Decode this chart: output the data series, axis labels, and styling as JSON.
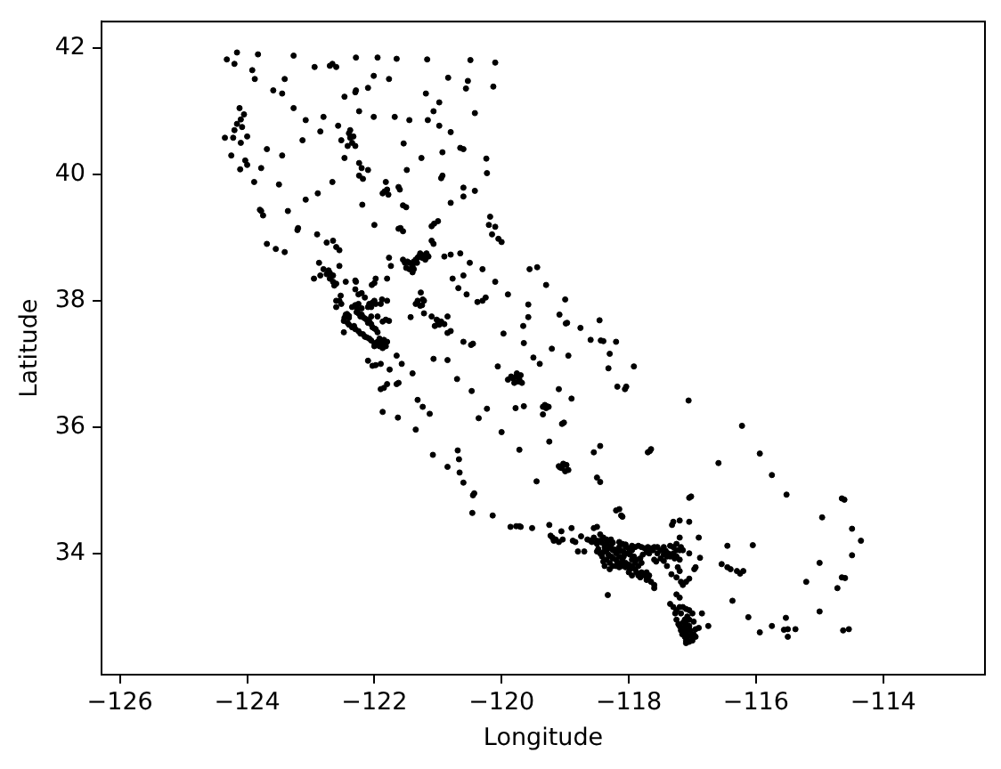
{
  "chart_data": {
    "type": "scatter",
    "xlabel": "Longitude",
    "ylabel": "Latitude",
    "color": "#000000",
    "marker": "circle",
    "xlim": [
      -126.29,
      -112.4
    ],
    "ylim": [
      32.08,
      42.42
    ],
    "xticks": [
      {
        "value": -126,
        "label": "−126"
      },
      {
        "value": -124,
        "label": "−124"
      },
      {
        "value": -122,
        "label": "−122"
      },
      {
        "value": -120,
        "label": "−120"
      },
      {
        "value": -118,
        "label": "−118"
      },
      {
        "value": -116,
        "label": "−116"
      },
      {
        "value": -114,
        "label": "−114"
      }
    ],
    "yticks": [
      34,
      36,
      38,
      40,
      42
    ],
    "x": [
      -124.32,
      -124.2,
      -124.16,
      -123.83,
      -123.27,
      -122.66,
      -122.6,
      -122.7,
      -122.29,
      -121.95,
      -121.65,
      -121.17,
      -120.49,
      -120.1,
      -123.92,
      -123.88,
      -123.59,
      -123.45,
      -123.41,
      -122.94,
      -123.27,
      -123.08,
      -122.8,
      -122.57,
      -122.47,
      -122.29,
      -122.1,
      -122.01,
      -121.77,
      -122.01,
      -121.68,
      -121.45,
      -121.16,
      -121.07,
      -120.98,
      -122.24,
      -122.52,
      -122.47,
      -122.85,
      -123.13,
      -123.45,
      -123.69,
      -123.5,
      -123.08,
      -122.89,
      -122.66,
      -122.24,
      -122.1,
      -121.82,
      -121.49,
      -121.54,
      -121.26,
      -120.93,
      -120.93,
      -120.6,
      -120.42,
      -120.23,
      -120.13,
      -120.56,
      -120.84,
      -120.42,
      -120.8,
      -120.98,
      -121.19,
      -120.53,
      -124.16,
      -124.1,
      -124.08,
      -124.2,
      -124.05,
      -124.12,
      -124.22,
      -124.35,
      -124.0,
      -124.1,
      -124.25,
      -124.0,
      -124.11,
      -124.03,
      -123.89,
      -123.78,
      -122.38,
      -122.4,
      -122.35,
      -122.3,
      -122.42,
      -122.38,
      -122.33,
      -120.65,
      -120.6,
      -120.24,
      -122.3,
      -122.24,
      -122.2,
      -122.18,
      -121.84,
      -121.8,
      -121.87,
      -121.78,
      -121.6,
      -121.62,
      -121.55,
      -121.5,
      -122.19,
      -122.0,
      -121.62,
      -121.59,
      -121.55,
      -121.06,
      -121.0,
      -121.1,
      -121.07,
      -121.1,
      -120.95,
      -120.8,
      -120.6,
      -120.18,
      -120.2,
      -120.1,
      -120.0,
      -120.05,
      -120.15,
      -121.45,
      -121.4,
      -121.35,
      -121.3,
      -121.28,
      -121.25,
      -121.45,
      -121.4,
      -121.55,
      -121.2,
      -121.15,
      -121.74,
      -121.77,
      -121.8,
      -120.8,
      -120.9,
      -120.65,
      -120.77,
      -120.6,
      -120.55,
      -120.68,
      -120.38,
      -120.3,
      -120.25,
      -121.27,
      -121.32,
      -121.25,
      -121.35,
      -121.22,
      -121.43,
      -121.22,
      -121.1,
      -121.0,
      -120.95,
      -121.05,
      -120.9,
      -120.85,
      -120.85,
      -120.8,
      -120.48,
      -120.45,
      -120.6,
      -120.85,
      -119.97,
      -120.06,
      -119.65,
      -119.5,
      -119.7,
      -119.85,
      -119.8,
      -119.72,
      -119.68,
      -119.9,
      -119.65,
      -119.29,
      -119.35,
      -119.32,
      -119.35,
      -119.02,
      -119.05,
      -119.25,
      -120.36,
      -119.78,
      -119.05,
      -118.98,
      -119.1,
      -118.95,
      -119.0,
      -119.45,
      -118.45,
      -118.5,
      -118.45,
      -118.55,
      -122.7,
      -122.72,
      -122.65,
      -122.8,
      -122.87,
      -122.63,
      -122.6,
      -122.45,
      -122.29,
      -122.3,
      -122.55,
      -122.25,
      -122.2,
      -122.04,
      -121.98,
      -122.0,
      -122.55,
      -122.52,
      -122.6,
      -122.53,
      -122.03,
      -122.05,
      -121.98,
      -121.8,
      -121.88,
      -122.27,
      -122.25,
      -122.2,
      -122.3,
      -122.15,
      -122.08,
      -122.1,
      -121.98,
      -122.0,
      -121.77,
      -121.87,
      -121.95,
      -122.4,
      -122.43,
      -122.42,
      -122.35,
      -122.3,
      -122.22,
      -122.15,
      -122.48,
      -122.48,
      -121.9,
      -121.85,
      -121.95,
      -122.0,
      -121.8,
      -121.87,
      -122.05,
      -121.65,
      -121.57,
      -122.03,
      -121.98,
      -121.9,
      -122.1,
      -121.76,
      -121.65,
      -121.62,
      -121.9,
      -121.85,
      -121.8,
      -121.4,
      -122.85,
      -122.95,
      -123.8,
      -123.78,
      -123.75,
      -123.69,
      -123.55,
      -123.41,
      -123.36,
      -123.2,
      -123.21,
      -122.9,
      -122.65,
      -122.75,
      -122.6,
      -122.55,
      -121.87,
      -121.63,
      -121.32,
      -121.24,
      -121.13,
      -121.35,
      -121.08,
      -120.69,
      -120.67,
      -120.85,
      -120.66,
      -120.6,
      -120.43,
      -120.45,
      -120.46,
      -120.14,
      -119.7,
      -119.77,
      -119.86,
      -119.52,
      -119.23,
      -119.18,
      -119.1,
      -119.04,
      -118.75,
      -118.84,
      -119.06,
      -119.25,
      -118.9,
      -121.07,
      -120.7,
      -120.47,
      -120.23,
      -120.0,
      -119.72,
      -118.25,
      -118.3,
      -118.35,
      -118.4,
      -118.45,
      -118.5,
      -118.2,
      -118.15,
      -118.1,
      -118.05,
      -118.0,
      -117.95,
      -117.9,
      -117.85,
      -117.75,
      -117.65,
      -117.6,
      -117.55,
      -117.45,
      -117.35,
      -117.3,
      -117.25,
      -117.2,
      -117.4,
      -117.35,
      -117.25,
      -117.2,
      -116.97,
      -116.95,
      -117.23,
      -117.33,
      -117.15,
      -117.1,
      -117.57,
      -117.6,
      -118.35,
      -118.3,
      -118.25,
      -118.2,
      -118.15,
      -118.1,
      -118.05,
      -118.1,
      -118.2,
      -118.15,
      -118.3,
      -118.38,
      -118.4,
      -117.95,
      -117.9,
      -117.85,
      -117.8,
      -117.75,
      -117.7,
      -117.65,
      -117.6,
      -117.85,
      -118.0,
      -117.95,
      -117.9,
      -117.8,
      -118.45,
      -118.5,
      -118.55,
      -118.4,
      -118.6,
      -118.3,
      -118.25,
      -118.5,
      -118.45,
      -118.55,
      -118.5,
      -118.7,
      -118.8,
      -118.15,
      -118.12,
      -118.1,
      -118.2,
      -117.3,
      -117.32,
      -117.2,
      -117.05,
      -117.02,
      -117.05,
      -116.9,
      -117.2,
      -116.45,
      -116.05,
      -116.54,
      -116.45,
      -116.4,
      -116.3,
      -116.2,
      -116.25,
      -116.88,
      -116.37,
      -115.53,
      -115.56,
      -115.5,
      -115.5,
      -115.38,
      -115.75,
      -115.94,
      -116.12,
      -114.63,
      -114.54,
      -114.6,
      -114.65,
      -114.72,
      -114.61,
      -114.65,
      -114.49,
      -114.35,
      -114.49,
      -115.0,
      -115.21,
      -115.0,
      -114.96,
      -115.52,
      -115.75,
      -115.94,
      -116.22,
      -116.59,
      -117.06,
      -117.16,
      -117.12,
      -117.05,
      -116.95,
      -117.08,
      -117.05,
      -117.1,
      -117.2,
      -117.25,
      -117.27,
      -117.3,
      -117.35,
      -117.2,
      -117.1,
      -117.0,
      -116.9,
      -117.05,
      -117.15,
      -116.75,
      -116.85,
      -117.2,
      -117.25,
      -118.4,
      -118.44,
      -118.6,
      -118.2,
      -118.3,
      -118.32,
      -117.92,
      -118.18,
      -118.04,
      -118.06,
      -118.97,
      -118.76,
      -118.46,
      -119.0,
      -119.09,
      -118.99,
      -119.3,
      -119.44,
      -119.56,
      -118.95,
      -119.21,
      -119.58,
      -119.58,
      -119.66,
      -117.67,
      -117.7,
      -117.65,
      -118.9,
      -119.4,
      -119.1,
      -118.33,
      -120.5,
      -120.3,
      -120.1,
      -119.9,
      -118.35,
      -118.28,
      -118.22,
      -118.18,
      -118.12,
      -118.08,
      -118.02,
      -117.98,
      -117.92,
      -117.88,
      -117.82,
      -117.78,
      -117.72,
      -117.68,
      -117.62,
      -117.5,
      -117.42,
      -117.38,
      -117.3,
      -117.28,
      -117.45,
      -117.5,
      -118.28,
      -118.32,
      -118.25,
      -118.18,
      -118.12,
      -118.05,
      -118.0,
      -117.98,
      -117.88,
      -117.82,
      -117.72,
      -118.42,
      -118.38,
      -118.35,
      -118.42,
      -118.58,
      -118.65,
      -118.28,
      -118.15,
      -118.05,
      -117.95,
      -117.8,
      -117.7,
      -117.55,
      -117.45,
      -117.15,
      -117.18,
      -117.25,
      -117.05,
      -117.4,
      -117.2,
      -117.25,
      -117.18,
      -117.05,
      -117.72,
      -117.68,
      -117.6,
      -117.95,
      -118.08,
      -118.48,
      -117.18,
      -117.13,
      -117.08,
      -117.03,
      -117.0,
      -116.98,
      -117.05,
      -117.1,
      -117.18,
      -117.22,
      -117.12,
      -117.08,
      -117.18,
      -117.25,
      -117.15,
      -117.05,
      -116.98,
      -117.12,
      -117.1,
      -117.0,
      -116.95,
      -122.45,
      -122.47,
      -122.4,
      -122.28,
      -122.22,
      -122.18,
      -122.12,
      -122.05,
      -122.03,
      -121.95,
      -121.92,
      -121.85,
      -121.82,
      -121.92,
      -122.0,
      -122.08,
      -122.12,
      -122.18,
      -122.25,
      -122.32,
      -122.4,
      -122.35,
      -122.25,
      -122.2,
      -122.1,
      -122.08,
      -122.0,
      -121.9,
      -121.82,
      -122.05,
      -122.6,
      -122.65,
      -122.7,
      -122.75,
      -122.3,
      -122.15,
      -121.48,
      -121.38,
      -121.33,
      -121.32,
      -121.22,
      -121.18,
      -121.38,
      -121.5,
      -121.52,
      -121.28,
      -121.24,
      -121.0,
      -120.98,
      -121.02,
      -119.82,
      -119.77,
      -119.74,
      -119.76,
      -119.08,
      -119.03,
      -119.3,
      -119.26,
      -119.72,
      -119.2,
      -119.15,
      -118.88
    ],
    "values": [
      41.82,
      41.75,
      41.93,
      41.9,
      41.88,
      41.75,
      41.7,
      41.72,
      41.85,
      41.85,
      41.83,
      41.82,
      41.81,
      41.77,
      41.65,
      41.51,
      41.33,
      41.28,
      41.51,
      41.7,
      41.05,
      40.86,
      40.91,
      40.77,
      41.23,
      41.33,
      41.37,
      41.56,
      41.51,
      40.91,
      40.91,
      40.86,
      40.86,
      41.0,
      40.77,
      41.0,
      40.54,
      40.26,
      40.68,
      40.54,
      40.3,
      40.4,
      39.84,
      39.6,
      39.7,
      39.88,
      39.98,
      40.07,
      39.88,
      40.07,
      40.49,
      40.26,
      39.98,
      40.35,
      39.79,
      39.74,
      40.02,
      41.39,
      41.36,
      41.53,
      40.97,
      40.67,
      41.14,
      41.28,
      41.48,
      40.8,
      40.87,
      40.75,
      40.7,
      40.95,
      41.05,
      40.58,
      40.58,
      40.6,
      40.5,
      40.3,
      40.15,
      40.08,
      40.22,
      39.88,
      40.1,
      40.58,
      40.65,
      40.5,
      40.45,
      40.45,
      40.7,
      40.6,
      40.42,
      40.4,
      40.25,
      41.3,
      40.18,
      40.1,
      39.93,
      39.73,
      39.76,
      39.7,
      39.68,
      39.76,
      39.8,
      39.51,
      39.48,
      39.52,
      39.2,
      39.14,
      39.15,
      39.1,
      39.22,
      39.26,
      39.18,
      38.9,
      38.95,
      39.94,
      39.55,
      39.65,
      39.33,
      39.2,
      39.17,
      38.93,
      38.98,
      39.05,
      38.6,
      38.55,
      38.65,
      38.7,
      38.75,
      38.68,
      38.5,
      38.45,
      38.65,
      38.65,
      38.7,
      38.55,
      38.68,
      38.35,
      38.73,
      38.7,
      38.75,
      38.35,
      38.4,
      38.1,
      38.2,
      37.98,
      38.0,
      38.05,
      38.13,
      38.0,
      37.93,
      37.95,
      38.0,
      37.74,
      37.8,
      37.75,
      37.64,
      37.67,
      37.6,
      37.63,
      37.75,
      37.49,
      37.52,
      37.3,
      37.32,
      37.35,
      37.06,
      37.48,
      36.96,
      37.33,
      37.1,
      36.82,
      36.8,
      36.7,
      36.75,
      36.7,
      36.75,
      36.33,
      36.33,
      36.32,
      36.35,
      36.2,
      36.07,
      36.05,
      35.77,
      36.14,
      36.3,
      35.35,
      35.4,
      35.38,
      35.32,
      35.3,
      35.14,
      35.13,
      35.2,
      35.7,
      35.6,
      38.44,
      38.48,
      38.4,
      38.5,
      38.6,
      38.24,
      38.27,
      38.3,
      38.3,
      38.32,
      38.55,
      38.1,
      38.12,
      38.25,
      38.35,
      38.28,
      38.0,
      37.95,
      37.9,
      38.08,
      37.97,
      37.9,
      37.95,
      38.0,
      38.02,
      37.87,
      37.8,
      37.78,
      37.93,
      37.72,
      37.67,
      37.65,
      37.55,
      37.56,
      37.68,
      37.67,
      37.75,
      37.73,
      37.79,
      37.65,
      37.58,
      37.55,
      37.48,
      37.43,
      37.68,
      37.5,
      37.33,
      37.3,
      37.35,
      37.33,
      37.35,
      37.25,
      37.37,
      37.13,
      37.0,
      36.97,
      36.98,
      37.0,
      37.05,
      36.91,
      36.68,
      36.7,
      36.6,
      36.62,
      36.68,
      36.85,
      38.4,
      38.35,
      39.44,
      39.42,
      39.35,
      38.9,
      38.82,
      38.77,
      39.42,
      39.15,
      39.12,
      39.05,
      38.95,
      38.92,
      38.85,
      38.8,
      36.24,
      36.15,
      36.43,
      36.32,
      36.21,
      35.96,
      35.56,
      35.63,
      35.49,
      35.37,
      35.28,
      35.12,
      34.95,
      34.92,
      34.64,
      34.6,
      34.42,
      34.43,
      34.42,
      34.4,
      34.28,
      34.2,
      34.18,
      34.22,
      34.27,
      34.18,
      34.35,
      34.45,
      34.4,
      37.08,
      36.76,
      36.57,
      36.29,
      35.92,
      35.64,
      34.05,
      34.08,
      34.05,
      34.02,
      34.0,
      34.03,
      34.0,
      34.1,
      34.15,
      34.1,
      34.08,
      34.05,
      34.1,
      34.12,
      34.08,
      34.08,
      34.1,
      34.1,
      34.1,
      34.12,
      34.1,
      34.05,
      34.05,
      33.95,
      33.95,
      33.95,
      33.9,
      33.75,
      33.78,
      33.78,
      33.67,
      33.5,
      33.55,
      33.87,
      33.9,
      33.9,
      33.85,
      33.8,
      33.8,
      33.78,
      33.8,
      33.85,
      33.9,
      33.9,
      33.95,
      33.75,
      33.8,
      33.87,
      33.8,
      33.75,
      33.8,
      33.7,
      33.65,
      33.6,
      33.55,
      33.45,
      33.65,
      33.7,
      33.65,
      33.85,
      33.85,
      34.2,
      34.2,
      34.25,
      34.25,
      34.2,
      34.2,
      34.17,
      34.15,
      34.3,
      34.4,
      34.42,
      34.03,
      34.03,
      34.7,
      34.6,
      34.58,
      34.68,
      34.5,
      34.45,
      34.52,
      34.5,
      34.9,
      34.88,
      34.25,
      34.25,
      34.12,
      34.13,
      33.83,
      33.78,
      33.75,
      33.72,
      33.72,
      33.68,
      33.93,
      33.25,
      32.98,
      32.79,
      32.8,
      32.68,
      32.8,
      32.85,
      32.75,
      32.99,
      32.78,
      32.8,
      33.61,
      33.62,
      33.45,
      34.85,
      34.87,
      34.39,
      34.2,
      33.97,
      33.85,
      33.55,
      33.08,
      34.57,
      34.93,
      35.24,
      35.58,
      36.02,
      35.43,
      36.42,
      32.72,
      32.75,
      32.7,
      32.8,
      32.65,
      32.6,
      32.58,
      32.85,
      32.95,
      33.05,
      33.15,
      33.2,
      33.15,
      33.12,
      33.05,
      32.82,
      32.95,
      32.9,
      32.85,
      33.05,
      33.3,
      33.35,
      37.36,
      37.37,
      37.38,
      37.35,
      37.16,
      36.93,
      36.96,
      36.64,
      36.64,
      36.6,
      37.65,
      37.57,
      37.69,
      38.02,
      37.78,
      37.64,
      38.25,
      38.53,
      38.5,
      37.13,
      37.24,
      37.94,
      37.74,
      37.6,
      35.62,
      35.6,
      35.65,
      36.45,
      37.0,
      36.6,
      33.34,
      38.6,
      38.5,
      38.3,
      38.1,
      34.15,
      34.12,
      34.06,
      34.03,
      34.04,
      34.02,
      34.0,
      33.98,
      33.95,
      33.9,
      33.92,
      33.98,
      34.02,
      34.0,
      34.05,
      34.05,
      34.04,
      34.0,
      34.0,
      33.92,
      33.88,
      33.92,
      33.95,
      33.98,
      33.92,
      33.86,
      33.84,
      33.78,
      33.82,
      33.75,
      33.7,
      33.62,
      33.58,
      33.95,
      34.1,
      34.22,
      34.17,
      34.18,
      34.22,
      34.22,
      34.18,
      34.14,
      34.12,
      34.1,
      34.1,
      34.0,
      33.98,
      34.05,
      34.1,
      34.15,
      34.0,
      33.8,
      33.72,
      33.62,
      33.55,
      33.6,
      33.7,
      33.65,
      33.5,
      33.9,
      33.95,
      34.07,
      32.78,
      32.82,
      32.78,
      32.78,
      32.68,
      32.72,
      32.85,
      32.88,
      32.82,
      32.88,
      32.95,
      33.0,
      33.05,
      33.1,
      33.15,
      33.1,
      32.92,
      32.68,
      32.62,
      32.62,
      32.68,
      37.78,
      37.73,
      37.76,
      37.82,
      37.75,
      37.74,
      37.7,
      37.63,
      37.58,
      37.5,
      37.4,
      37.38,
      37.28,
      37.28,
      37.28,
      37.4,
      37.42,
      37.47,
      37.52,
      37.6,
      37.62,
      37.9,
      37.95,
      37.88,
      37.9,
      37.95,
      38.0,
      37.95,
      37.7,
      37.75,
      38.0,
      38.3,
      38.35,
      38.42,
      38.18,
      38.05,
      38.62,
      38.62,
      38.6,
      38.68,
      38.72,
      38.75,
      38.5,
      38.52,
      38.6,
      37.92,
      38.02,
      37.68,
      37.62,
      37.7,
      36.77,
      36.8,
      36.72,
      36.85,
      35.36,
      35.42,
      36.3,
      36.32,
      34.43,
      34.25,
      34.22,
      34.2
    ]
  }
}
